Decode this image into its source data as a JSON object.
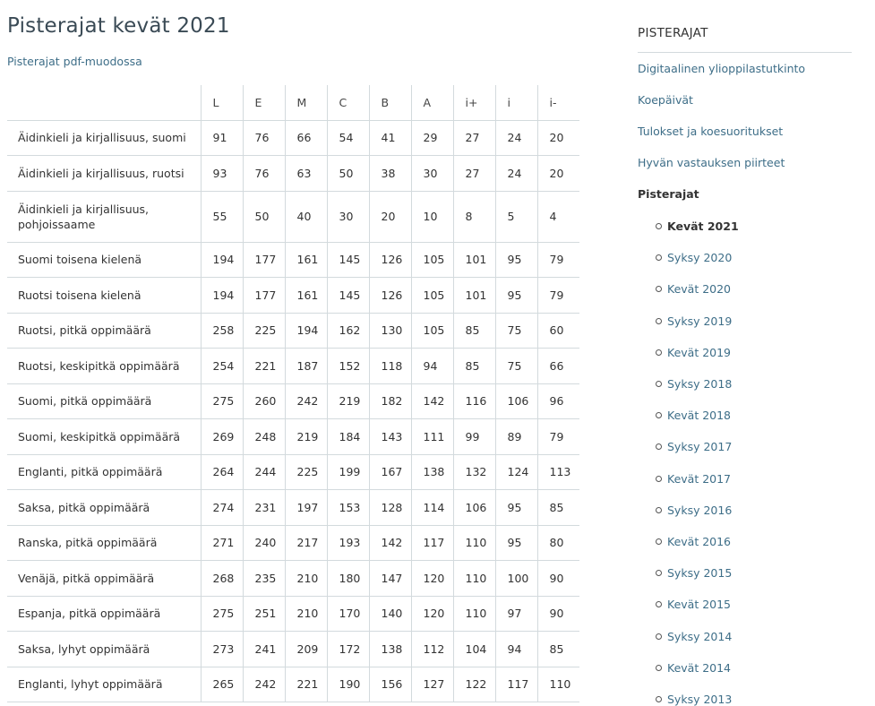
{
  "page": {
    "title": "Pisterajat kevät 2021",
    "pdf_link": "Pisterajat pdf-muodossa"
  },
  "table": {
    "columns": [
      "L",
      "E",
      "M",
      "C",
      "B",
      "A",
      "i+",
      "i",
      "i-"
    ],
    "rows": [
      {
        "subject": "Äidinkieli ja kirjallisuus, suomi",
        "values": [
          91,
          76,
          66,
          54,
          41,
          29,
          27,
          24,
          20
        ]
      },
      {
        "subject": "Äidinkieli ja kirjallisuus, ruotsi",
        "values": [
          93,
          76,
          63,
          50,
          38,
          30,
          27,
          24,
          20
        ]
      },
      {
        "subject": "Äidinkieli ja kirjallisuus, pohjoissaame",
        "values": [
          55,
          50,
          40,
          30,
          20,
          10,
          8,
          5,
          4
        ]
      },
      {
        "subject": "Suomi toisena kielenä",
        "values": [
          194,
          177,
          161,
          145,
          126,
          105,
          101,
          95,
          79
        ]
      },
      {
        "subject": "Ruotsi toisena kielenä",
        "values": [
          194,
          177,
          161,
          145,
          126,
          105,
          101,
          95,
          79
        ]
      },
      {
        "subject": "Ruotsi, pitkä oppimäärä",
        "values": [
          258,
          225,
          194,
          162,
          130,
          105,
          85,
          75,
          60
        ]
      },
      {
        "subject": "Ruotsi, keskipitkä oppimäärä",
        "values": [
          254,
          221,
          187,
          152,
          118,
          94,
          85,
          75,
          66
        ]
      },
      {
        "subject": "Suomi, pitkä oppimäärä",
        "values": [
          275,
          260,
          242,
          219,
          182,
          142,
          116,
          106,
          96
        ]
      },
      {
        "subject": "Suomi, keskipitkä oppimäärä",
        "values": [
          269,
          248,
          219,
          184,
          143,
          111,
          99,
          89,
          79
        ]
      },
      {
        "subject": "Englanti, pitkä oppimäärä",
        "values": [
          264,
          244,
          225,
          199,
          167,
          138,
          132,
          124,
          113
        ]
      },
      {
        "subject": "Saksa, pitkä oppimäärä",
        "values": [
          274,
          231,
          197,
          153,
          128,
          114,
          106,
          95,
          85
        ]
      },
      {
        "subject": "Ranska, pitkä oppimäärä",
        "values": [
          271,
          240,
          217,
          193,
          142,
          117,
          110,
          95,
          80
        ]
      },
      {
        "subject": "Venäjä, pitkä oppimäärä",
        "values": [
          268,
          235,
          210,
          180,
          147,
          120,
          110,
          100,
          90
        ]
      },
      {
        "subject": "Espanja, pitkä oppimäärä",
        "values": [
          275,
          251,
          210,
          170,
          140,
          120,
          110,
          97,
          90
        ]
      },
      {
        "subject": "Saksa, lyhyt oppimäärä",
        "values": [
          273,
          241,
          209,
          172,
          138,
          112,
          104,
          94,
          85
        ]
      },
      {
        "subject": "Englanti, lyhyt oppimäärä",
        "values": [
          265,
          242,
          221,
          190,
          156,
          127,
          122,
          117,
          110
        ]
      }
    ]
  },
  "sidebar": {
    "title": "PISTERAJAT",
    "items": [
      {
        "label": "Digitaalinen ylioppilastutkinto"
      },
      {
        "label": "Koepäivät"
      },
      {
        "label": "Tulokset ja koesuoritukset"
      },
      {
        "label": "Hyvän vastauksen piirteet"
      },
      {
        "label": "Pisterajat"
      }
    ],
    "sub_items": [
      {
        "label": "Kevät 2021",
        "active": true
      },
      {
        "label": "Syksy 2020"
      },
      {
        "label": "Kevät 2020"
      },
      {
        "label": "Syksy 2019"
      },
      {
        "label": "Kevät 2019"
      },
      {
        "label": "Syksy 2018"
      },
      {
        "label": "Kevät 2018"
      },
      {
        "label": "Syksy 2017"
      },
      {
        "label": "Kevät 2017"
      },
      {
        "label": "Syksy 2016"
      },
      {
        "label": "Kevät 2016"
      },
      {
        "label": "Syksy 2015"
      },
      {
        "label": "Kevät 2015"
      },
      {
        "label": "Syksy 2014"
      },
      {
        "label": "Kevät 2014"
      },
      {
        "label": "Syksy 2013"
      }
    ]
  }
}
